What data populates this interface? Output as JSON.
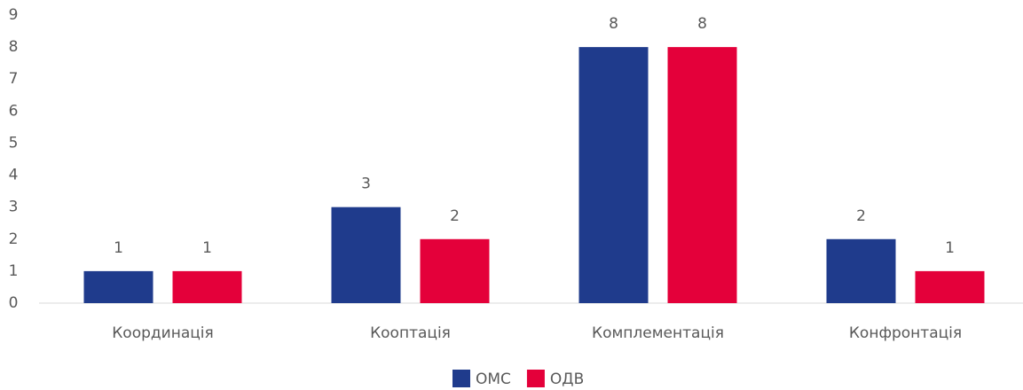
{
  "chart_data": {
    "type": "bar",
    "categories": [
      "Координація",
      "Кооптація",
      "Комплементація",
      "Конфронтація"
    ],
    "series": [
      {
        "name": "ОМС",
        "color": "#1f3b8c",
        "values": [
          1,
          3,
          8,
          2
        ]
      },
      {
        "name": "ОДВ",
        "color": "#e4003a",
        "values": [
          1,
          2,
          8,
          1
        ]
      }
    ],
    "ylim": [
      0,
      9
    ],
    "yticks": [
      0,
      1,
      2,
      3,
      4,
      5,
      6,
      7,
      8,
      9
    ],
    "grid": false,
    "legend": "bottom"
  }
}
